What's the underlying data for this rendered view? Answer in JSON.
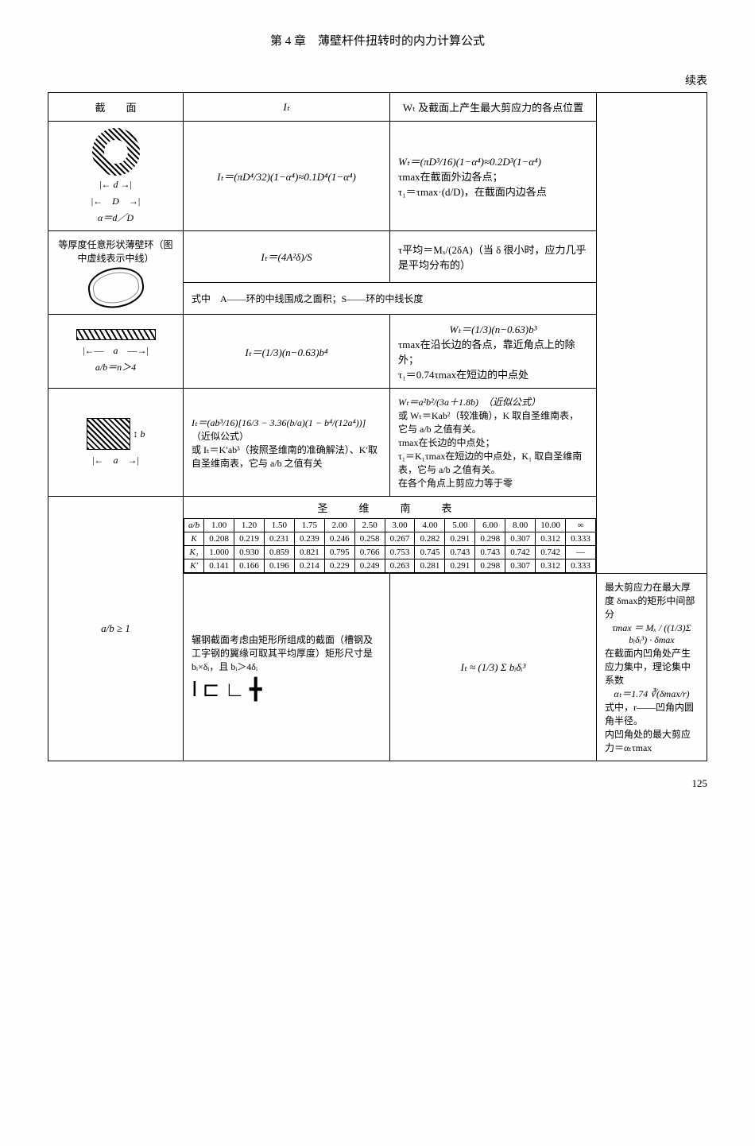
{
  "chapter": "第 4 章　薄壁杆件扭转时的内力计算公式",
  "continue": "续表",
  "headers": {
    "section": "截　　面",
    "i": "Iₜ",
    "w": "Wₜ 及截面上产生最大剪应力的各点位置"
  },
  "r1": {
    "dlabel": "d",
    "Dlabel": "D",
    "alpha": "α＝d／D",
    "i": "Iₜ＝(πD⁴/32)(1−α⁴)≈0.1D⁴(1−α⁴)",
    "w1": "Wₜ＝(πD³/16)(1−α⁴)≈0.2D³(1−α⁴)",
    "w2": "τmax在截面外边各点；",
    "w3": "τ₁＝τmax·(d/D)，在截面内边各点"
  },
  "r2": {
    "desc": "等厚度任意形状薄壁环（图中虚线表示中线）",
    "i": "Iₜ＝(4A²δ)/S",
    "w1": "τ平均＝Mₓ/(2δA)（当 δ 很小时，应力几乎是平均分布的）",
    "note": "式中　A——环的中线围成之面积；S——环的中线长度"
  },
  "r3": {
    "alabel": "a",
    "cond": "a/b＝n＞4",
    "i": "Iₜ＝(1/3)(n−0.63)b⁴",
    "w1": "Wₜ＝(1/3)(n−0.63)b³",
    "w2": "τmax在沿长边的各点，靠近角点上的除外；",
    "w3": "τ₁＝0.74τmax在短边的中点处"
  },
  "r4": {
    "alabel": "a",
    "blabel": "b",
    "i1": "Iₜ＝(ab³/16)[16/3 − 3.36(b/a)(1 − b⁴/(12a⁴))]",
    "i2": "（近似公式）",
    "i3": "或 Iₜ＝K′ab³（按照圣维南的准确解法）、K′取自圣维南表，它与 a/b 之值有关",
    "w1": "Wₜ＝a²b²/(3a＋1.8b)　（近似公式）",
    "w2": "或 Wₜ＝Kab²（较准确），K 取自圣维南表，它与 a/b 之值有关。",
    "w3": "τmax在长边的中点处；",
    "w4": "τ₁＝K₁τmax在短边的中点处，K₁ 取自圣维南表，它与 a/b 之值有关。",
    "w5": "在各个角点上剪应力等于零"
  },
  "sv": {
    "title": "圣　维　南　表",
    "cond": "a/b ≥ 1",
    "head": [
      "a/b",
      "1.00",
      "1.20",
      "1.50",
      "1.75",
      "2.00",
      "2.50",
      "3.00",
      "4.00",
      "5.00",
      "6.00",
      "8.00",
      "10.00",
      "∞"
    ],
    "K": [
      "K",
      "0.208",
      "0.219",
      "0.231",
      "0.239",
      "0.246",
      "0.258",
      "0.267",
      "0.282",
      "0.291",
      "0.298",
      "0.307",
      "0.312",
      "0.333"
    ],
    "K1": [
      "K₁",
      "1.000",
      "0.930",
      "0.859",
      "0.821",
      "0.795",
      "0.766",
      "0.753",
      "0.745",
      "0.743",
      "0.743",
      "0.742",
      "0.742",
      "—"
    ],
    "Kp": [
      "K′",
      "0.141",
      "0.166",
      "0.196",
      "0.214",
      "0.229",
      "0.249",
      "0.263",
      "0.281",
      "0.291",
      "0.298",
      "0.307",
      "0.312",
      "0.333"
    ]
  },
  "r6": {
    "desc": "辗钢截面考虑由矩形所组成的截面（槽钢及工字钢的翼缘可取其平均厚度）矩形尺寸是 bᵢ×δᵢ，且 bᵢ＞4δᵢ",
    "i": "Iₜ ≈ (1/3) Σ bᵢδᵢ³",
    "w1": "最大剪应力在最大厚度 δmax的矩形中间部分",
    "w2": "τmax ＝ Mₓ / ((1/3)Σ bᵢδᵢ³) · δmax",
    "w3": "在截面内凹角处产生应力集中，理论集中系数",
    "w4": "αₜ＝1.74 ∛(δmax/r)",
    "w5": "式中，r——凹角内圆角半径。",
    "w6": "内凹角处的最大剪应力＝αₜτmax"
  },
  "page": "125"
}
